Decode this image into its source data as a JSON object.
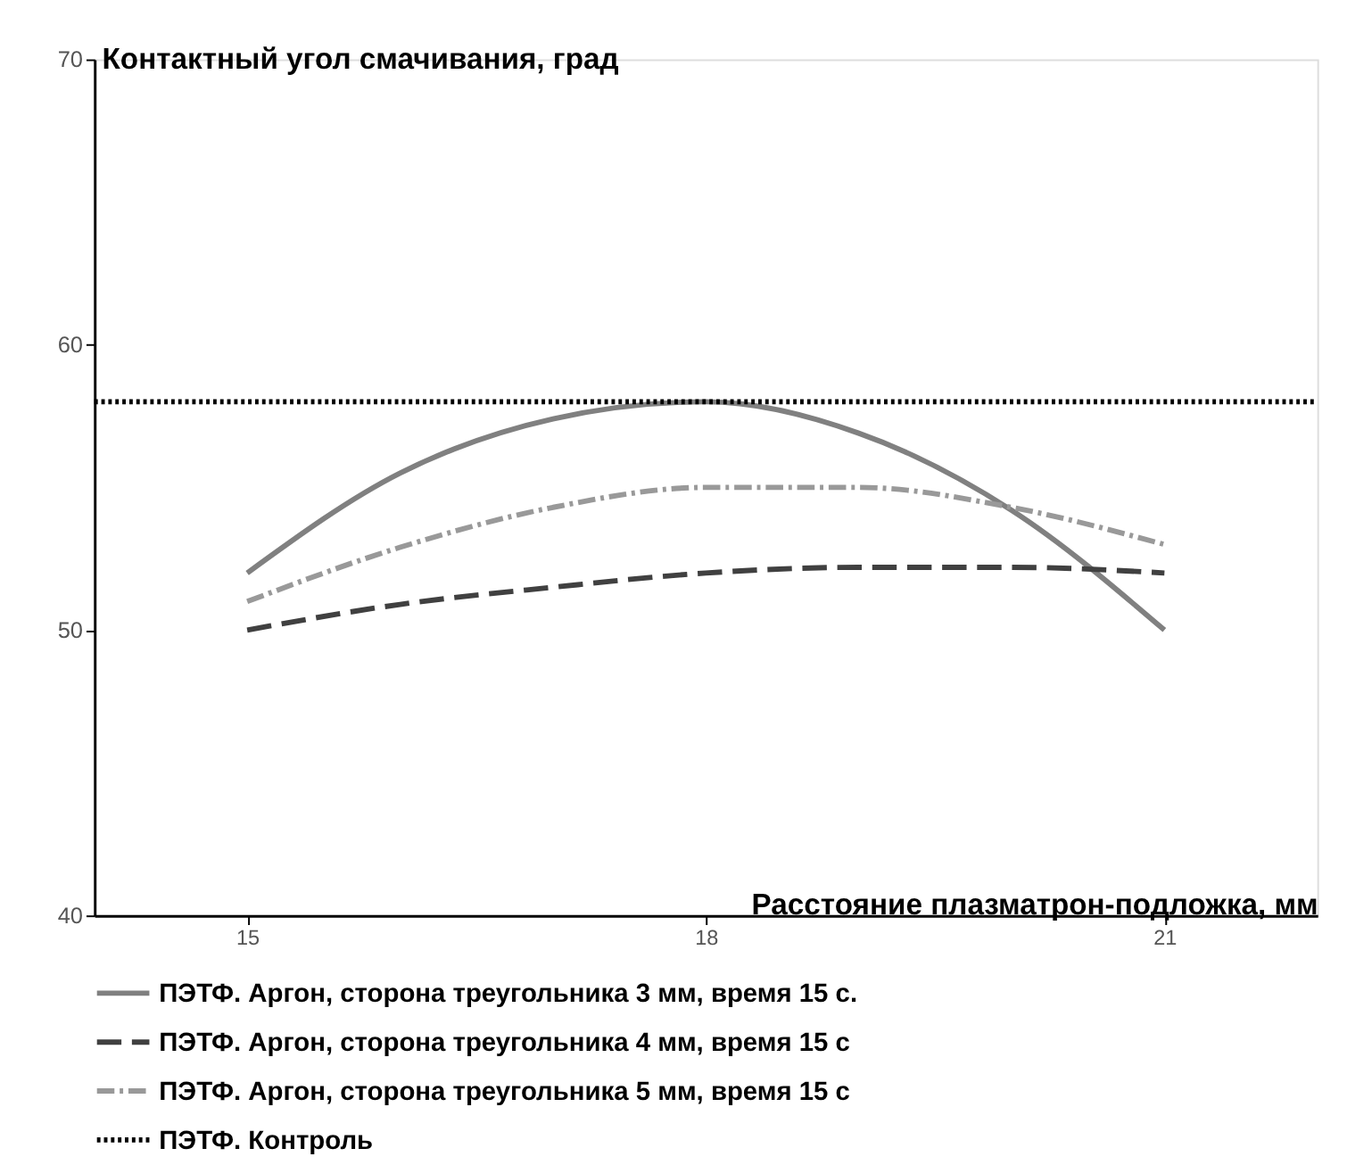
{
  "chart_data": {
    "type": "line",
    "xlabel": "Расстояние плазматрон-подложка, мм",
    "ylabel": "Контактный угол смачивания, град",
    "xlim": [
      14,
      22
    ],
    "xticks": [
      15,
      18,
      21
    ],
    "ylim": [
      40,
      70
    ],
    "yticks": [
      40,
      50,
      60,
      70
    ],
    "grid": false,
    "legend": "bottom",
    "marker": "none",
    "series": [
      {
        "name": "ПЭТФ. Аргон, сторона треугольника 3 мм, время 15 с.",
        "color": "#808080",
        "line_style": "solid",
        "x": [
          15,
          16,
          17,
          18,
          19,
          20,
          21
        ],
        "values": [
          52,
          55.5,
          57.4,
          58,
          56.9,
          54.2,
          50
        ]
      },
      {
        "name": "ПЭТФ. Аргон, сторона треугольника 4 мм, время 15 с",
        "color": "#404040",
        "line_style": "dashed",
        "x": [
          15,
          16,
          17,
          18,
          19,
          20,
          21
        ],
        "values": [
          50,
          50.9,
          51.5,
          52,
          52.2,
          52.2,
          52
        ]
      },
      {
        "name": "ПЭТФ. Аргон, сторона треугольника 5 мм, время 15 с",
        "color": "#999999",
        "line_style": "dashdot",
        "x": [
          15,
          16,
          17,
          18,
          19,
          20,
          21
        ],
        "values": [
          51,
          52.9,
          54.3,
          55,
          55,
          54.3,
          53
        ]
      },
      {
        "name": "ПЭТФ. Контроль",
        "color": "#000000",
        "line_style": "dotted",
        "x": [
          14,
          22
        ],
        "values": [
          58,
          58
        ]
      }
    ]
  }
}
